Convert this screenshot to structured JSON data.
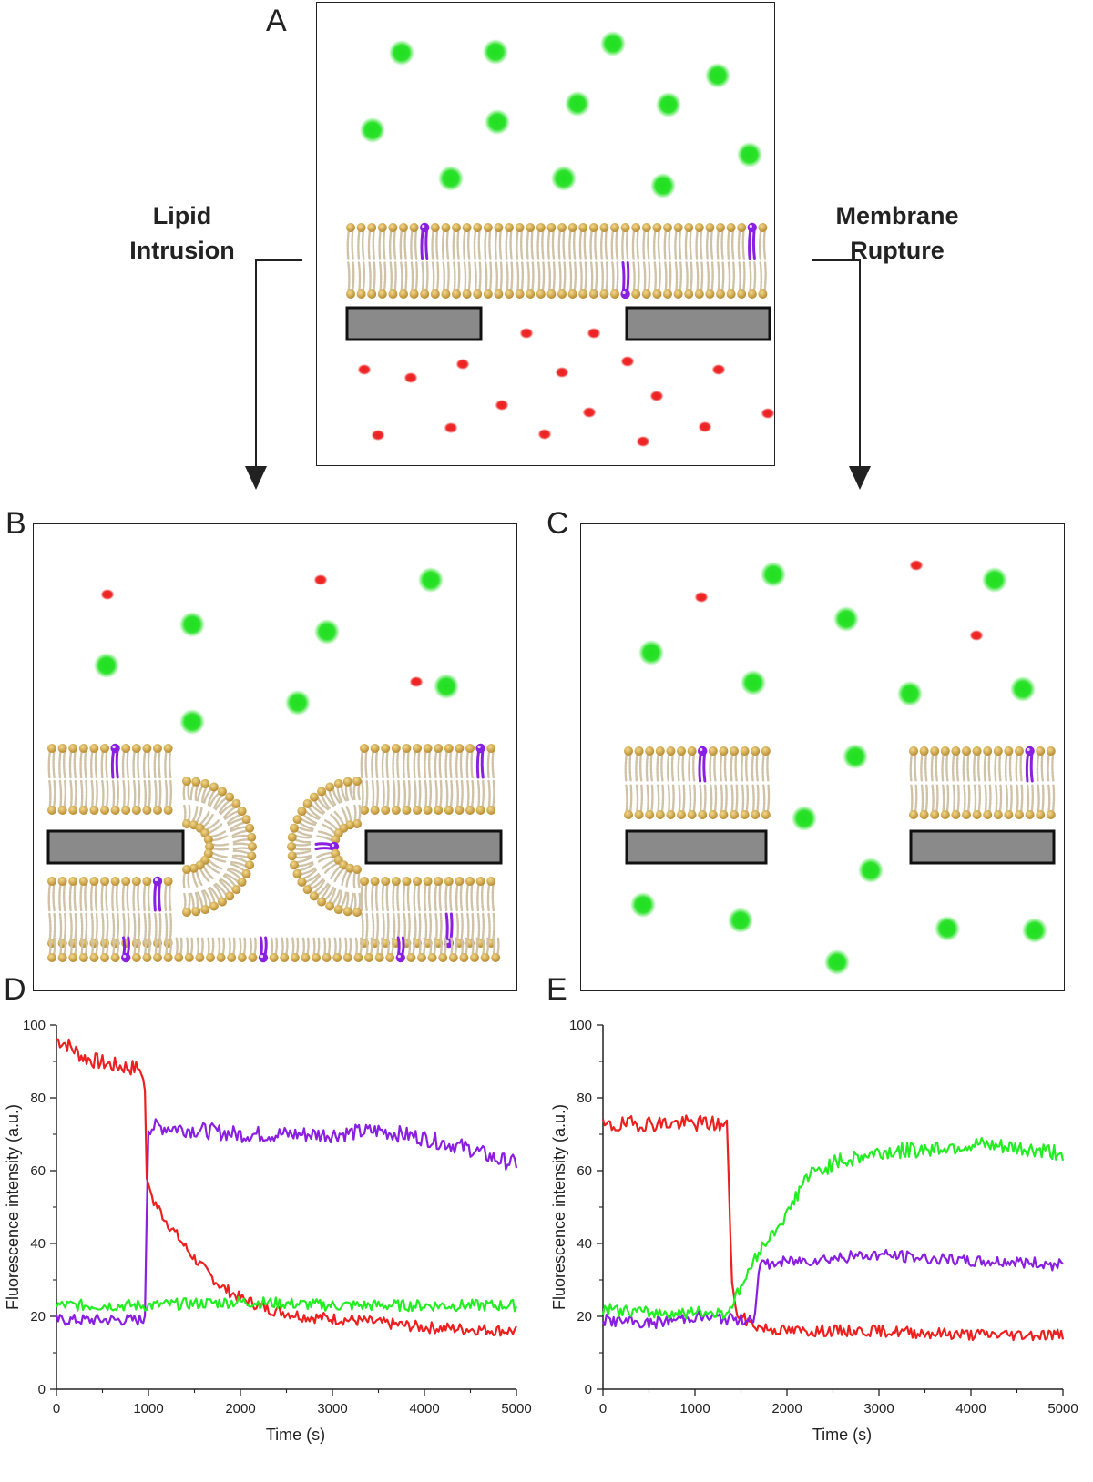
{
  "panels": {
    "a": "A",
    "b": "B",
    "c": "C",
    "d": "D",
    "e": "E"
  },
  "processes": {
    "left": {
      "line1": "Lipid",
      "line2": "Intrusion"
    },
    "right": {
      "line1": "Membrane",
      "line2": "Rupture"
    }
  },
  "colors": {
    "green_dye": "#1fe01f",
    "red_dye": "#ee1f1f",
    "lipid_head": "#c9a24a",
    "lipid_tail": "#cfc2a6",
    "labeled_lipid": "#8a1fe0",
    "substrate": "#8a8a8a"
  },
  "chart_data": [
    {
      "type": "line",
      "panel": "D",
      "xlabel": "Time (s)",
      "ylabel": "Fluorescence intensity (a.u.)",
      "xlim": [
        0,
        5000
      ],
      "ylim": [
        0,
        100
      ],
      "xticks": [
        "0",
        "1000",
        "2000",
        "3000",
        "4000",
        "5000"
      ],
      "yticks": [
        "0",
        "20",
        "40",
        "60",
        "80",
        "100"
      ],
      "series": [
        {
          "color": "#ee1f1f",
          "x": [
            0,
            100,
            300,
            600,
            900,
            960,
            980,
            1050,
            1200,
            1400,
            1600,
            1800,
            2000,
            2300,
            2700,
            3200,
            4000,
            5000
          ],
          "y": [
            96,
            95,
            91,
            89,
            88,
            84,
            58,
            52,
            46,
            39,
            33,
            28,
            25,
            22,
            20,
            19,
            17,
            16
          ]
        },
        {
          "color": "#8a1fe0",
          "x": [
            0,
            500,
            950,
            970,
            990,
            1200,
            2000,
            3000,
            3500,
            4000,
            4500,
            4800,
            5000
          ],
          "y": [
            19,
            19,
            19,
            21,
            72,
            72,
            70,
            70,
            71,
            69,
            66,
            63,
            62
          ]
        },
        {
          "color": "#22ee22",
          "x": [
            0,
            1000,
            2000,
            3000,
            4000,
            5000
          ],
          "y": [
            23,
            23,
            24,
            23,
            23,
            23
          ]
        }
      ]
    },
    {
      "type": "line",
      "panel": "E",
      "xlabel": "Time (s)",
      "ylabel": "Fluorescence intensity (a.u.)",
      "xlim": [
        0,
        5000
      ],
      "ylim": [
        0,
        100
      ],
      "xticks": [
        "0",
        "1000",
        "2000",
        "3000",
        "4000",
        "5000"
      ],
      "yticks": [
        "0",
        "20",
        "40",
        "60",
        "80",
        "100"
      ],
      "series": [
        {
          "color": "#ee1f1f",
          "x": [
            0,
            400,
            800,
            1200,
            1350,
            1400,
            1450,
            1550,
            1700,
            2000,
            3000,
            4000,
            5000
          ],
          "y": [
            72,
            73,
            73,
            73,
            72,
            30,
            21,
            19,
            17,
            16,
            16,
            15,
            15
          ]
        },
        {
          "color": "#8a1fe0",
          "x": [
            0,
            500,
            1000,
            1500,
            1650,
            1700,
            2000,
            2500,
            3000,
            3500,
            4000,
            4500,
            5000
          ],
          "y": [
            19,
            18,
            20,
            19,
            20,
            34,
            35,
            36,
            37,
            36,
            35,
            35,
            34
          ]
        },
        {
          "color": "#22ee22",
          "x": [
            0,
            500,
            1000,
            1350,
            1500,
            1700,
            2000,
            2200,
            2500,
            3000,
            3500,
            4000,
            4500,
            5000
          ],
          "y": [
            22,
            21,
            21,
            21,
            28,
            38,
            48,
            58,
            62,
            65,
            66,
            67,
            66,
            65
          ]
        }
      ]
    }
  ]
}
